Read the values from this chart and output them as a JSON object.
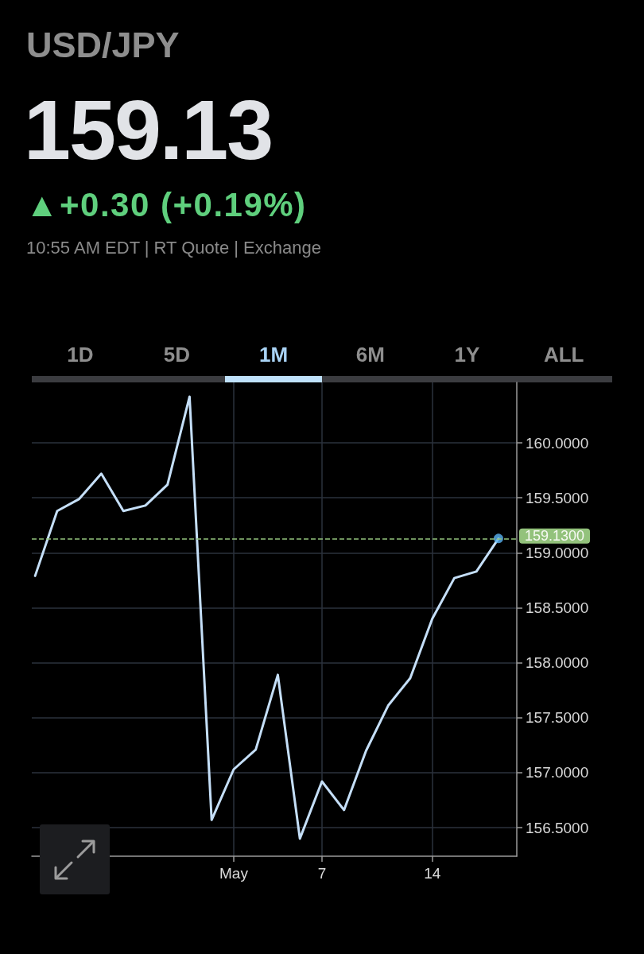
{
  "chart_data": {
    "type": "line",
    "title": "USD/JPY",
    "subtitle": "159.13",
    "annotations": [
      "▲+0.30 (+0.19%)",
      "10:55 AM EDT | RT Quote | Exchange",
      "1D",
      "5D",
      "1M",
      "6M",
      "1Y",
      "ALL"
    ],
    "categories": [
      null,
      null,
      null,
      null,
      null,
      null,
      null,
      null,
      null,
      "May",
      null,
      null,
      null,
      "7",
      null,
      null,
      null,
      null,
      "14",
      null,
      null,
      null
    ],
    "series": [
      {
        "color": "#c5dff8",
        "values": [
          158.79,
          159.38,
          159.49,
          159.72,
          159.38,
          159.43,
          159.62,
          160.42,
          156.57,
          157.03,
          157.21,
          157.89,
          156.4,
          156.92,
          156.66,
          157.2,
          157.61,
          157.86,
          158.4,
          158.77,
          158.83,
          159.13
        ]
      },
      {
        "type": "scatter",
        "color": "#5ab4f2",
        "marker": "circle",
        "values": [
          null,
          null,
          null,
          null,
          null,
          null,
          null,
          null,
          null,
          null,
          null,
          null,
          null,
          null,
          null,
          null,
          null,
          null,
          null,
          null,
          null,
          159.13
        ]
      }
    ],
    "ylim": [
      156.24,
      160.55
    ],
    "yticks": [
      {
        "value": 156.5,
        "label": "156.5000"
      },
      {
        "value": 157,
        "label": "157.0000"
      },
      {
        "value": 157.5,
        "label": "157.5000"
      },
      {
        "value": 158,
        "label": "158.0000"
      },
      {
        "value": 158.5,
        "label": "158.5000"
      },
      {
        "value": 159,
        "label": "159.0000"
      },
      {
        "value": 159.5,
        "label": "159.5000"
      },
      {
        "value": 160,
        "label": "160.0000"
      }
    ],
    "ref_lines": [
      {
        "axis": "y",
        "value": 159.13,
        "label": "159.1300",
        "color": "#93c27c",
        "line_style": "dashed"
      }
    ],
    "grid": true
  }
}
